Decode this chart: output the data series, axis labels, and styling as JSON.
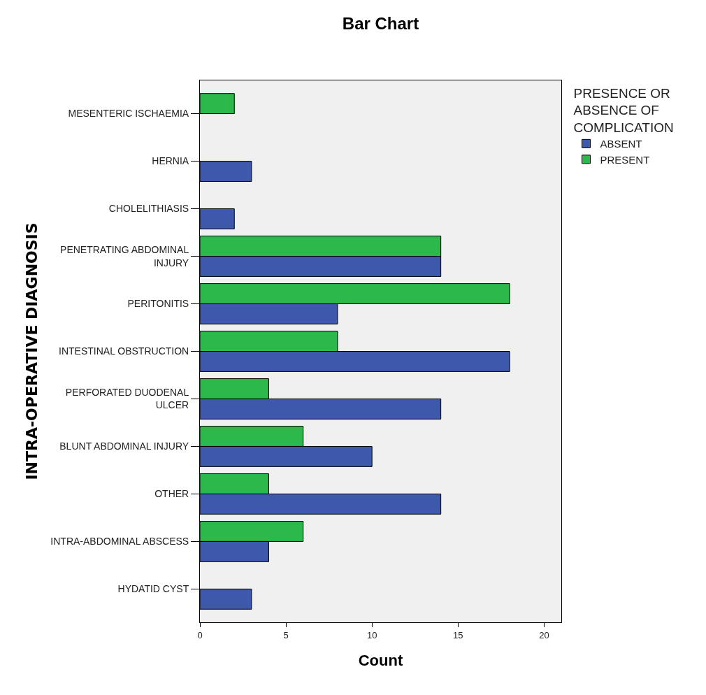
{
  "chart_data": {
    "type": "bar",
    "orientation": "horizontal",
    "title": "Bar Chart",
    "xlabel": "Count",
    "ylabel": "INTRA-OPERATIVE DIAGNOSIS",
    "legend_title": "PRESENCE OR ABSENCE OF COMPLICATION",
    "categories": [
      "MESENTERIC ISCHAEMIA",
      "HERNIA",
      "CHOLELITHIASIS",
      "PENETRATING ABDOMINAL INJURY",
      "PERITONITIS",
      "INTESTINAL OBSTRUCTION",
      "PERFORATED DUODENAL ULCER",
      "BLUNT ABDOMINAL INJURY",
      "OTHER",
      "INTRA-ABDOMINAL ABSCESS",
      "HYDATID CYST"
    ],
    "series": [
      {
        "name": "ABSENT",
        "color": "#3e58ac",
        "values": [
          null,
          3,
          2,
          14,
          8,
          18,
          14,
          10,
          14,
          4,
          3
        ]
      },
      {
        "name": "PRESENT",
        "color": "#2db84b",
        "values": [
          2,
          null,
          null,
          14,
          18,
          8,
          4,
          6,
          4,
          6,
          null
        ]
      }
    ],
    "xlim": [
      0,
      21
    ],
    "xticks": [
      0,
      5,
      10,
      15,
      20
    ],
    "grid": false,
    "legend": "top right"
  }
}
